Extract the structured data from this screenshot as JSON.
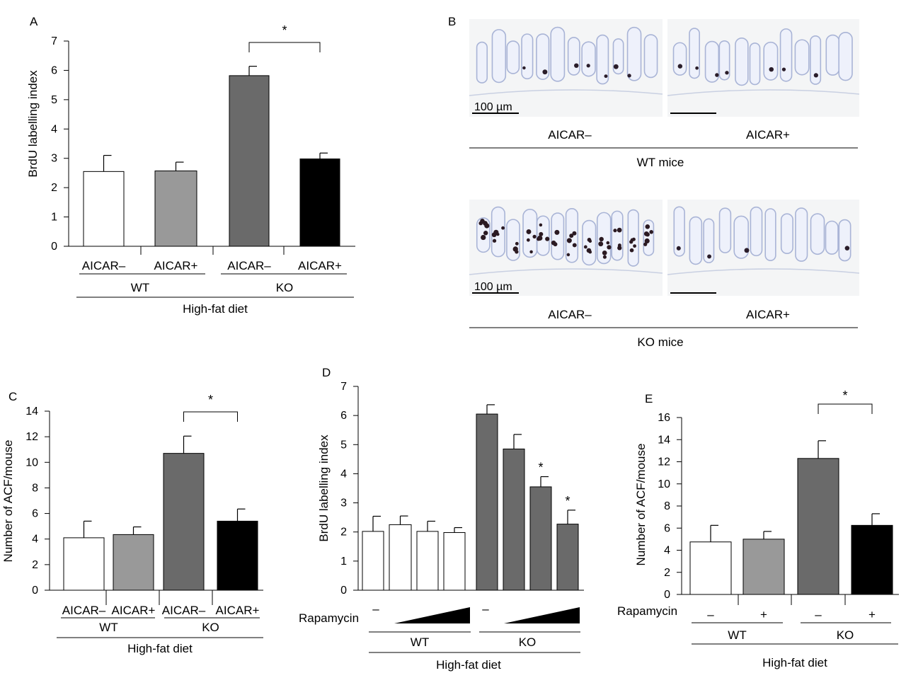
{
  "chart_data": [
    {
      "panel": "A",
      "type": "bar",
      "ylabel": "BrdU labelling index",
      "ylim": [
        0,
        7
      ],
      "yticks": [
        0,
        1,
        2,
        3,
        4,
        5,
        6,
        7
      ],
      "categories": [
        "AICAR–",
        "AICAR+",
        "AICAR–",
        "AICAR+"
      ],
      "values": [
        2.55,
        2.57,
        5.82,
        2.98
      ],
      "errors": [
        0.55,
        0.3,
        0.32,
        0.2
      ],
      "colors": [
        "#ffffff",
        "#999999",
        "#6a6a6a",
        "#000000"
      ],
      "groups": [
        {
          "label": "WT",
          "bars": [
            0,
            1
          ]
        },
        {
          "label": "KO",
          "bars": [
            2,
            3
          ]
        }
      ],
      "footer": "High-fat diet",
      "significance": [
        {
          "from": 2,
          "to": 3,
          "label": "*"
        }
      ]
    },
    {
      "panel": "C",
      "type": "bar",
      "ylabel": "Number of ACF/mouse",
      "ylim": [
        0,
        14
      ],
      "yticks": [
        0,
        2,
        4,
        6,
        8,
        10,
        12,
        14
      ],
      "categories": [
        "AICAR–",
        "AICAR+",
        "AICAR–",
        "AICAR+"
      ],
      "values": [
        4.1,
        4.35,
        10.7,
        5.4
      ],
      "errors": [
        1.3,
        0.6,
        1.35,
        0.95
      ],
      "colors": [
        "#ffffff",
        "#999999",
        "#6a6a6a",
        "#000000"
      ],
      "groups": [
        {
          "label": "WT",
          "bars": [
            0,
            1
          ]
        },
        {
          "label": "KO",
          "bars": [
            2,
            3
          ]
        }
      ],
      "footer": "High-fat diet",
      "significance": [
        {
          "from": 2,
          "to": 3,
          "label": "*"
        }
      ]
    },
    {
      "panel": "D",
      "type": "bar",
      "ylabel": "BrdU labelling index",
      "ylim": [
        0,
        7
      ],
      "yticks": [
        0,
        1,
        2,
        3,
        4,
        5,
        6,
        7
      ],
      "treatment_label": "Rapamycin",
      "treatment_marks": [
        "–",
        "–"
      ],
      "values": [
        2.02,
        2.25,
        2.02,
        1.98,
        6.05,
        4.85,
        3.55,
        2.27
      ],
      "errors": [
        0.52,
        0.3,
        0.35,
        0.17,
        0.32,
        0.5,
        0.35,
        0.48
      ],
      "colors": [
        "#ffffff",
        "#ffffff",
        "#ffffff",
        "#ffffff",
        "#6a6a6a",
        "#6a6a6a",
        "#6a6a6a",
        "#6a6a6a"
      ],
      "bar_stars": [
        "",
        "",
        "",
        "",
        "",
        "",
        "*",
        "*"
      ],
      "groups": [
        {
          "label": "WT",
          "bars": [
            0,
            3
          ]
        },
        {
          "label": "KO",
          "bars": [
            4,
            7
          ]
        }
      ],
      "footer": "High-fat diet"
    },
    {
      "panel": "E",
      "type": "bar",
      "ylabel": "Number of ACF/mouse",
      "ylim": [
        0,
        16
      ],
      "yticks": [
        0,
        2,
        4,
        6,
        8,
        10,
        12,
        14,
        16
      ],
      "treatment_label": "Rapamycin",
      "categories": [
        "–",
        "+",
        "–",
        "+"
      ],
      "values": [
        4.75,
        5.0,
        12.3,
        6.25
      ],
      "errors": [
        1.5,
        0.7,
        1.6,
        1.05
      ],
      "colors": [
        "#ffffff",
        "#999999",
        "#6a6a6a",
        "#000000"
      ],
      "groups": [
        {
          "label": "WT",
          "bars": [
            0,
            1
          ]
        },
        {
          "label": "KO",
          "bars": [
            2,
            3
          ]
        }
      ],
      "footer": "High-fat diet",
      "significance": [
        {
          "from": 2,
          "to": 3,
          "label": "*"
        }
      ]
    }
  ],
  "panel_b": {
    "panel": "B",
    "rows": [
      {
        "group": "WT mice",
        "left": "AICAR–",
        "right": "AICAR+",
        "scale": "100 µm"
      },
      {
        "group": "KO mice",
        "left": "AICAR–",
        "right": "AICAR+",
        "scale": "100 µm"
      }
    ]
  }
}
